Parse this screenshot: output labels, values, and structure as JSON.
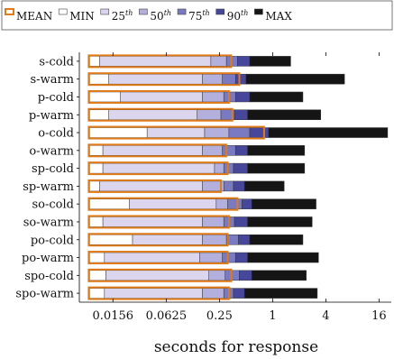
{
  "chart_data": {
    "type": "bar",
    "orientation": "horizontal-box",
    "xlabel": "seconds for response",
    "ylabel": "",
    "x_scale": "log2",
    "xlim": [
      0.0065,
      22
    ],
    "x_ticks": [
      0.0156,
      0.0625,
      0.25,
      1,
      4,
      16
    ],
    "x_tick_labels": [
      "0.0156",
      "0.0625",
      "0.25",
      "1",
      "4",
      "16"
    ],
    "legend": {
      "placement": "top",
      "entries": [
        {
          "key": "mean",
          "base": "MEAN",
          "sup": ""
        },
        {
          "key": "min",
          "base": "MIN",
          "sup": ""
        },
        {
          "key": "p25",
          "base": "25",
          "sup": "th"
        },
        {
          "key": "p50",
          "base": "50",
          "sup": "th"
        },
        {
          "key": "p75",
          "base": "75",
          "sup": "th"
        },
        {
          "key": "p90",
          "base": "90",
          "sup": "th"
        },
        {
          "key": "max",
          "base": "MAX",
          "sup": ""
        }
      ]
    },
    "colors": {
      "min": "#ffffff",
      "p25": "#dcd5ee",
      "p50": "#b4b0dd",
      "p75": "#7a7ac2",
      "p90": "#46479a",
      "max": "#151515",
      "mean": "#e07b1a",
      "edge": "#333333"
    },
    "categories": [
      "s-cold",
      "s-warm",
      "p-cold",
      "p-warm",
      "o-cold",
      "o-warm",
      "sp-cold",
      "sp-warm",
      "so-cold",
      "so-warm",
      "po-cold",
      "po-warm",
      "spo-cold",
      "spo-warm"
    ],
    "series": [
      {
        "key": "min",
        "values": [
          0.0085,
          0.0085,
          0.0085,
          0.0085,
          0.0085,
          0.0085,
          0.0085,
          0.0085,
          0.0085,
          0.0085,
          0.0085,
          0.0085,
          0.0085,
          0.0085
        ]
      },
      {
        "key": "p25",
        "values": [
          0.011,
          0.014,
          0.019,
          0.014,
          0.038,
          0.012,
          0.012,
          0.011,
          0.024,
          0.012,
          0.026,
          0.0125,
          0.013,
          0.0125
        ]
      },
      {
        "key": "p50",
        "values": [
          0.2,
          0.16,
          0.16,
          0.14,
          0.17,
          0.16,
          0.22,
          0.16,
          0.23,
          0.16,
          0.16,
          0.15,
          0.19,
          0.16
        ]
      },
      {
        "key": "p75",
        "values": [
          0.3,
          0.27,
          0.28,
          0.26,
          0.32,
          0.27,
          0.28,
          0.28,
          0.31,
          0.28,
          0.3,
          0.27,
          0.29,
          0.28
        ]
      },
      {
        "key": "p90",
        "values": [
          0.4,
          0.38,
          0.38,
          0.37,
          0.55,
          0.38,
          0.36,
          0.36,
          0.45,
          0.37,
          0.41,
          0.38,
          0.42,
          0.36
        ]
      },
      {
        "key": "p99",
        "values": [
          0.55,
          0.5,
          0.55,
          0.52,
          0.9,
          0.52,
          0.52,
          0.48,
          0.58,
          0.52,
          0.55,
          0.52,
          0.58,
          0.48
        ]
      },
      {
        "key": "max",
        "values": [
          1.6,
          6.5,
          2.2,
          3.5,
          20,
          2.3,
          2.3,
          1.35,
          3.1,
          2.8,
          2.2,
          3.3,
          2.4,
          3.2
        ]
      },
      {
        "key": "mean",
        "values": [
          0.34,
          0.42,
          0.32,
          0.35,
          0.8,
          0.3,
          0.31,
          0.26,
          0.4,
          0.32,
          0.31,
          0.31,
          0.34,
          0.32
        ]
      }
    ]
  }
}
